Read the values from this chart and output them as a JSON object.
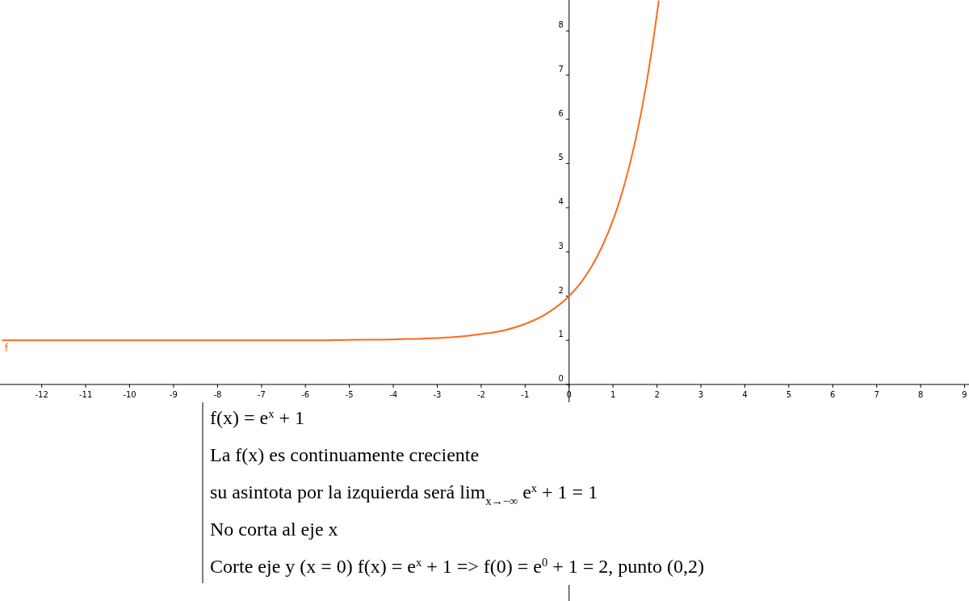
{
  "chart_data": {
    "type": "line",
    "x": [
      -12.9,
      -10,
      -8,
      -6,
      -5,
      -4,
      -3,
      -2.5,
      -2,
      -1.5,
      -1,
      -0.5,
      0,
      0.25,
      0.5,
      0.75,
      1,
      1.25,
      1.5,
      1.75,
      2,
      2.04
    ],
    "series": [
      {
        "name": "f",
        "color": "#ff6a1a",
        "values": [
          1,
          1,
          1,
          1,
          1.01,
          1.02,
          1.05,
          1.08,
          1.14,
          1.22,
          1.37,
          1.61,
          2,
          2.28,
          2.65,
          3.12,
          3.72,
          4.49,
          5.48,
          6.75,
          8.39,
          8.69
        ]
      }
    ],
    "xlim": [
      -12.95,
      9.1
    ],
    "ylim": [
      -4.9,
      8.7
    ],
    "xticks": [
      -12,
      -11,
      -10,
      -9,
      -8,
      -7,
      -6,
      -5,
      -4,
      -3,
      -2,
      -1,
      0,
      1,
      2,
      3,
      4,
      5,
      6,
      7,
      8,
      9
    ],
    "yticks": [
      0,
      1,
      2,
      3,
      4,
      5,
      6,
      7,
      8
    ],
    "grid": false,
    "marker": "none",
    "line_style": "solid",
    "annotations": [
      "f(x) = e$^{x}$ + 1",
      "La f(x) es continuamente creciente",
      "su asintota por la izquierda será lim$_{x→−∞}$ e$^{x}$ + 1 = 1",
      "No corta al eje x",
      "Corte eje y  (x = 0)  f(x) = e$^{x}$ + 1 => f(0) = e$^{0}$ + 1 = 2, punto (0,2)"
    ]
  }
}
